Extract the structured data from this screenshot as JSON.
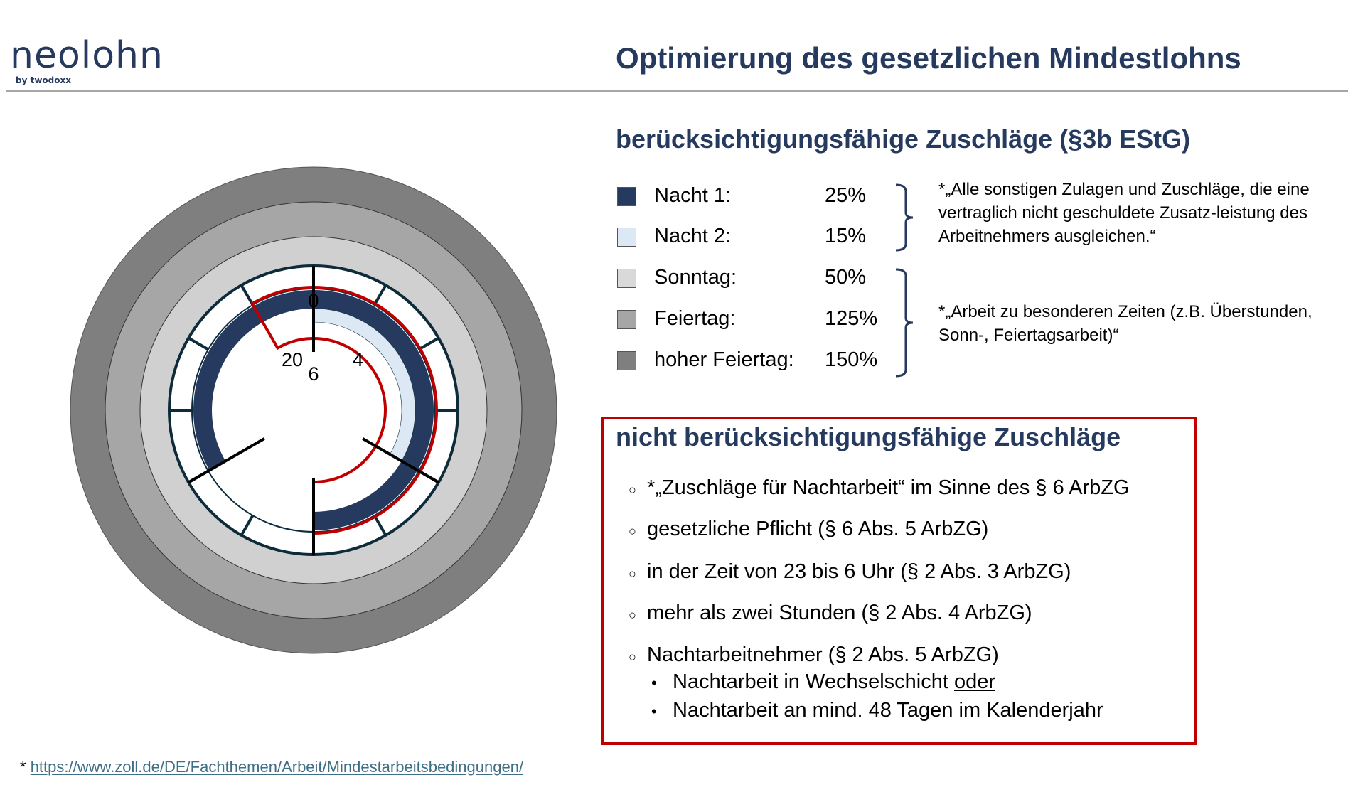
{
  "logo": {
    "word": "neolohn",
    "byline": "by twodoxx"
  },
  "title": "Optimierung des gesetzlichen Mindestlohns",
  "section1": {
    "heading": "berücksichtigungsfähige Zuschläge (§3b EStG)",
    "legend": [
      {
        "label": "Nacht 1:",
        "value": "25%",
        "color": "#253a5e"
      },
      {
        "label": "Nacht 2:",
        "value": "15%",
        "color": "#dce9f5"
      },
      {
        "label": "Sonntag:",
        "value": "50%",
        "color": "#d9d9d9"
      },
      {
        "label": "Feiertag:",
        "value": "125%",
        "color": "#a6a6a6"
      },
      {
        "label": "hoher Feiertag:",
        "value": "150%",
        "color": "#7f7f7f"
      }
    ],
    "note1": "*„Alle sonstigen Zulagen und Zuschläge, die eine vertraglich nicht geschuldete Zusatz-leistung des Arbeitnehmers ausgleichen.“",
    "note2": "*„Arbeit zu besonderen Zeiten (z.B. Überstunden, Sonn-, Feiertagsarbeit)“"
  },
  "section2": {
    "heading": "nicht berücksichtigungsfähige Zuschläge",
    "items": [
      "*„Zuschläge für Nachtarbeit“ im Sinne des § 6 ArbZG",
      "gesetzliche Pflicht (§ 6 Abs. 5 ArbZG)",
      "in der Zeit von 23 bis 6 Uhr (§ 2 Abs. 3 ArbZG)",
      "mehr als zwei Stunden (§ 2 Abs. 4 ArbZG)",
      "Nachtarbeitnehmer (§ 2 Abs. 5 ArbZG)"
    ],
    "subitems": [
      {
        "text": "Nachtarbeit in Wechselschicht ",
        "underlined": "oder"
      },
      {
        "text": "Nachtarbeit an mind. 48 Tagen im Kalenderjahr"
      }
    ],
    "bullet_circle": "○",
    "bullet_dot": "•",
    "border_color": "#c00000"
  },
  "footnote": {
    "star": "* ",
    "link": "https://www.zoll.de/DE/Fachthemen/Arbeit/Mindestarbeitsbedingungen/"
  },
  "clock": {
    "labels": [
      "0",
      "4",
      "6",
      "20"
    ],
    "marked_hours": [
      0,
      4,
      6,
      20
    ],
    "nacht1_hours": [
      20,
      6
    ],
    "nacht2_hours": [
      0,
      4
    ],
    "red_outline_hours": [
      23,
      6
    ],
    "ring_colors": {
      "hoher_feiertag": "#7f7f7f",
      "feiertag": "#a6a6a6",
      "sonntag": "#d0d0d0",
      "nacht1": "#253a5e",
      "nacht2": "#dce9f5",
      "outline": "#c00000",
      "dial": "#0d2b3a"
    }
  }
}
